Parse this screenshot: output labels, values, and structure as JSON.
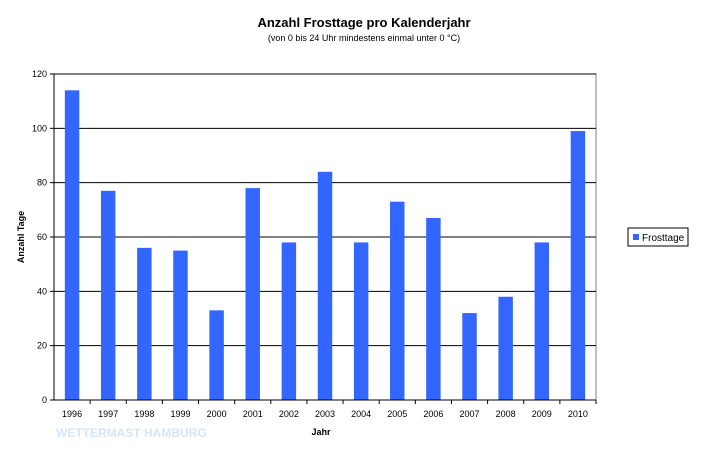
{
  "chart_data": {
    "type": "bar",
    "title": "Anzahl Frosttage pro Kalenderjahr",
    "subtitle": "(von 0 bis 24 Uhr mindestens einmal unter 0 °C)",
    "xlabel": "Jahr",
    "ylabel": "Anzahl Tage",
    "categories": [
      "1996",
      "1997",
      "1998",
      "1999",
      "2000",
      "2001",
      "2002",
      "2003",
      "2004",
      "2005",
      "2006",
      "2007",
      "2008",
      "2009",
      "2010"
    ],
    "series": [
      {
        "name": "Frosttage",
        "color": "#3366ff",
        "values": [
          114,
          77,
          56,
          55,
          33,
          78,
          58,
          84,
          58,
          73,
          67,
          32,
          38,
          58,
          99
        ]
      }
    ],
    "ylim": [
      0,
      120
    ],
    "yticks": [
      0,
      20,
      40,
      60,
      80,
      100,
      120
    ],
    "grid": true,
    "legend_position": "right"
  },
  "watermark": "WETTERMAST HAMBURG"
}
